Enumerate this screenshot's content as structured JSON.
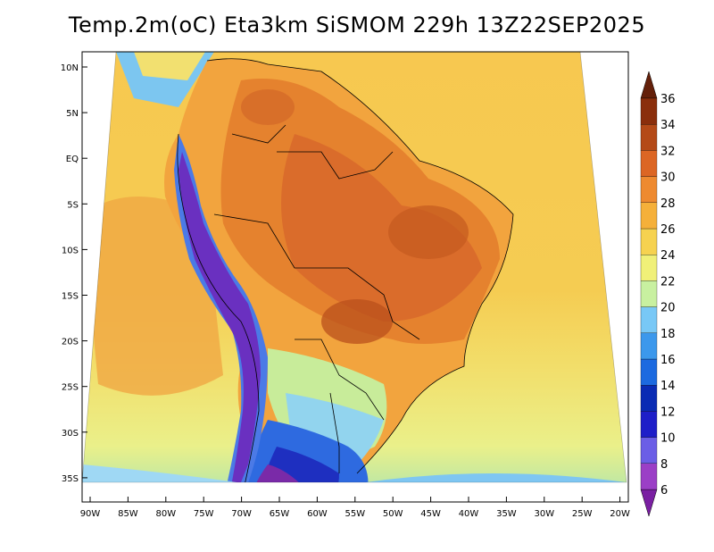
{
  "title": "Temp.2m(oC) Eta3km SiSMOM 229h 13Z22SEP2025",
  "lat_labels": [
    "10N",
    "5N",
    "EQ",
    "5S",
    "10S",
    "15S",
    "20S",
    "25S",
    "30S",
    "35S"
  ],
  "lon_labels": [
    "90W",
    "85W",
    "80W",
    "75W",
    "70W",
    "65W",
    "60W",
    "55W",
    "50W",
    "45W",
    "40W",
    "35W",
    "30W",
    "25W",
    "20W"
  ],
  "colorbar": {
    "labels": [
      "6",
      "8",
      "10",
      "12",
      "14",
      "16",
      "18",
      "20",
      "22",
      "24",
      "26",
      "28",
      "30",
      "32",
      "34",
      "36"
    ],
    "colors": [
      "#7a1fa2",
      "#9b3fc6",
      "#6b5ee6",
      "#1e1ec8",
      "#0a2bb4",
      "#1c6ae0",
      "#3c98ec",
      "#78c8f6",
      "#c8f0a0",
      "#f0f078",
      "#f6d250",
      "#f5b03a",
      "#ee8a30",
      "#dc6624",
      "#b44a18",
      "#8a2e0c",
      "#64200a"
    ]
  },
  "map_colors": {
    "ocean_north": "#f5c24a",
    "ocean_south": "#f0e67a",
    "continent_hot": "#e4782c",
    "continent_warm": "#f0a040",
    "andes_cold": "#6a3cc8",
    "southern_cold": "#3c7ae0"
  }
}
